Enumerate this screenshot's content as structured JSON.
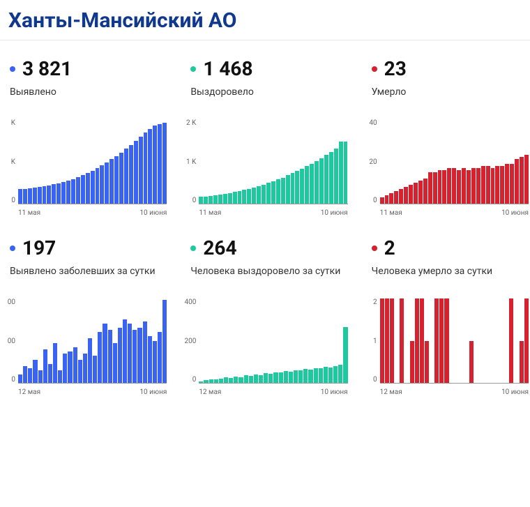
{
  "title": "Ханты-Мансийский АО",
  "colors": {
    "blue": "#3a63f3",
    "teal": "#1fc9a0",
    "red": "#d6222f",
    "text": "#111111",
    "label": "#333333",
    "axis": "#999999",
    "tick_text": "#666666"
  },
  "cards": [
    {
      "id": "detected-total",
      "value": "3 821",
      "label": "Выявлено",
      "color": "#3a63f3",
      "chart": {
        "type": "bar",
        "values": [
          680,
          700,
          720,
          750,
          790,
          830,
          870,
          920,
          970,
          1030,
          1100,
          1170,
          1260,
          1350,
          1450,
          1560,
          1680,
          1810,
          1950,
          2100,
          2260,
          2420,
          2600,
          2790,
          2980,
          3180,
          3370,
          3540,
          3700,
          3770,
          3821
        ],
        "ymax": 4000,
        "yticks": [
          {
            "v": 4000,
            "l": "K"
          },
          {
            "v": 2000,
            "l": "K"
          },
          {
            "v": 0,
            "l": "0"
          }
        ],
        "xlabels": [
          "11 мая",
          "10 июня"
        ]
      }
    },
    {
      "id": "recovered-total",
      "value": "1 468",
      "label": "Выздоровело",
      "color": "#1fc9a0",
      "chart": {
        "type": "bar",
        "values": [
          160,
          170,
          180,
          195,
          210,
          230,
          250,
          275,
          300,
          325,
          350,
          380,
          415,
          450,
          490,
          530,
          575,
          620,
          670,
          720,
          775,
          830,
          890,
          950,
          1015,
          1080,
          1150,
          1220,
          1300,
          1468,
          1468
        ],
        "ymax": 2000,
        "yticks": [
          {
            "v": 2000,
            "l": "2 K"
          },
          {
            "v": 1000,
            "l": "1 K"
          },
          {
            "v": 0,
            "l": "0"
          }
        ],
        "xlabels": [
          "11 мая",
          "10 июня"
        ]
      }
    },
    {
      "id": "deaths-total",
      "value": "23",
      "label": "Умерло",
      "color": "#d6222f",
      "chart": {
        "type": "bar",
        "values": [
          3,
          4,
          5,
          6,
          7,
          8,
          9,
          10,
          11,
          12,
          15,
          15,
          16,
          16,
          17,
          17,
          16,
          17,
          16,
          17,
          17,
          18,
          18,
          17,
          18,
          18,
          19,
          19,
          21,
          22,
          23
        ],
        "ymax": 40,
        "yticks": [
          {
            "v": 40,
            "l": "40"
          },
          {
            "v": 20,
            "l": "20"
          },
          {
            "v": 0,
            "l": "0"
          }
        ],
        "xlabels": [
          "11 мая",
          "10 июня"
        ]
      }
    },
    {
      "id": "detected-daily",
      "value": "197",
      "label": "Выявлено заболевших за сутки",
      "color": "#3a63f3",
      "chart": {
        "type": "bar",
        "values": [
          20,
          40,
          35,
          55,
          30,
          80,
          45,
          95,
          30,
          70,
          75,
          85,
          55,
          70,
          105,
          65,
          120,
          140,
          125,
          95,
          130,
          150,
          140,
          125,
          130,
          145,
          110,
          100,
          120,
          197
        ],
        "ymax": 200,
        "yticks": [
          {
            "v": 200,
            "l": "00"
          },
          {
            "v": 100,
            "l": "00"
          },
          {
            "v": 0,
            "l": "0"
          }
        ],
        "xlabels": [
          "12 мая",
          "10 июня"
        ]
      }
    },
    {
      "id": "recovered-daily",
      "value": "264",
      "label": "Человека выздоровело за сутки",
      "color": "#1fc9a0",
      "chart": {
        "type": "bar",
        "values": [
          8,
          12,
          15,
          18,
          20,
          25,
          22,
          30,
          28,
          35,
          32,
          40,
          38,
          45,
          42,
          50,
          48,
          55,
          52,
          60,
          58,
          65,
          62,
          70,
          68,
          75,
          72,
          80,
          85,
          264
        ],
        "ymax": 400,
        "yticks": [
          {
            "v": 400,
            "l": "400"
          },
          {
            "v": 200,
            "l": "200"
          },
          {
            "v": 0,
            "l": "0"
          }
        ],
        "xlabels": [
          "12 мая",
          "10 июня"
        ]
      }
    },
    {
      "id": "deaths-daily",
      "value": "2",
      "label": "Человека умерло за сутки",
      "color": "#d6222f",
      "chart": {
        "type": "bar",
        "values": [
          2,
          2,
          2,
          0,
          2,
          0,
          1,
          2,
          2,
          1,
          0,
          2,
          2,
          2,
          0,
          0,
          0,
          0,
          1,
          0,
          0,
          0,
          0,
          0,
          0,
          0,
          2,
          0,
          1,
          2
        ],
        "ymax": 2,
        "yticks": [
          {
            "v": 2,
            "l": "2"
          },
          {
            "v": 1,
            "l": "1"
          },
          {
            "v": 0,
            "l": "0"
          }
        ],
        "xlabels": [
          "12 мая",
          "10 июня"
        ]
      }
    }
  ]
}
